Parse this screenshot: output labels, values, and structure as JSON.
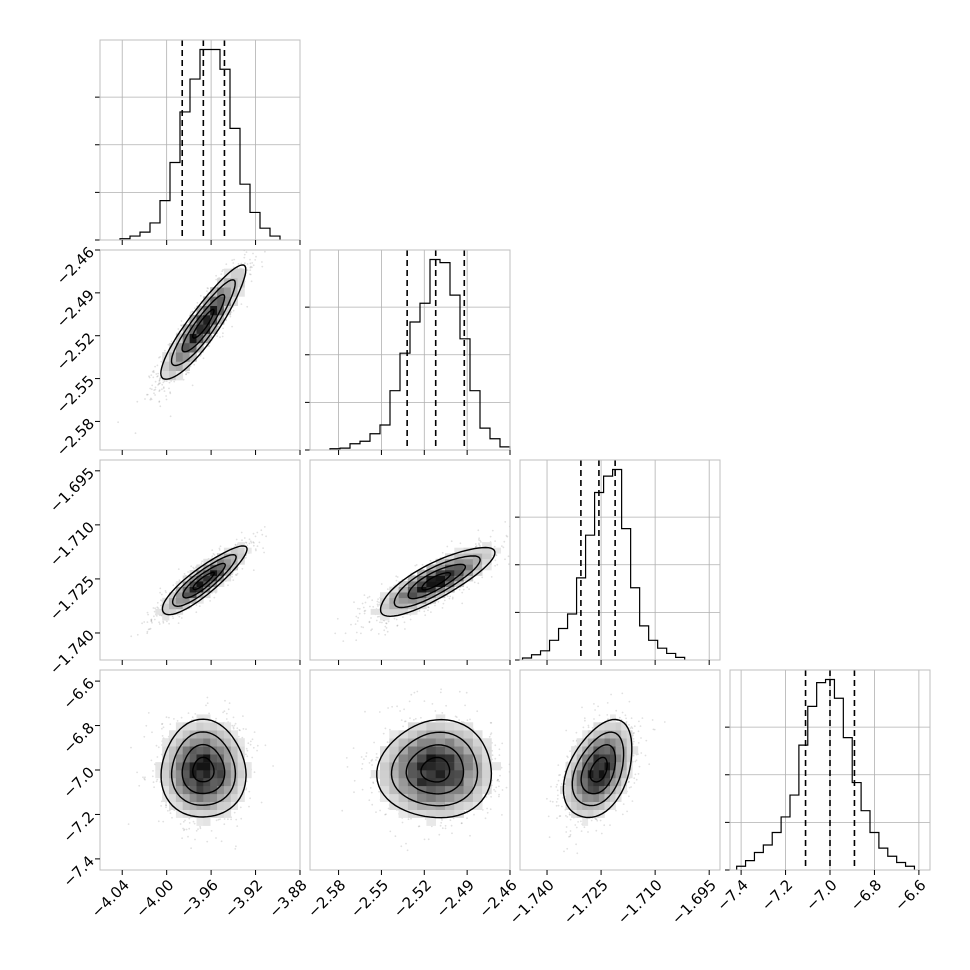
{
  "chart_data": {
    "type": "corner",
    "grid": true,
    "parameters": [
      {
        "name": "",
        "range": [
          -4.06,
          -3.88
        ],
        "ticks": [
          -4.04,
          -4.0,
          -3.96,
          -3.92,
          -3.88
        ],
        "tick_labels": [
          "−4.04",
          "−4.00",
          "−3.96",
          "−3.92",
          "−3.88"
        ],
        "quantiles": [
          -3.986,
          -3.967,
          -3.948
        ]
      },
      {
        "name": "",
        "range": [
          -2.6,
          -2.46
        ],
        "ticks": [
          -2.58,
          -2.55,
          -2.52,
          -2.49,
          -2.46
        ],
        "tick_labels": [
          "−2.58",
          "−2.55",
          "−2.52",
          "−2.49",
          "−2.46"
        ],
        "quantiles": [
          -2.532,
          -2.512,
          -2.492
        ]
      },
      {
        "name": "",
        "range": [
          -1.7475,
          -1.692
        ],
        "ticks": [
          -1.74,
          -1.725,
          -1.71,
          -1.695
        ],
        "tick_labels": [
          "−1.740",
          "−1.725",
          "−1.710",
          "−1.695"
        ],
        "quantiles": [
          -1.7306,
          -1.7256,
          -1.7211
        ]
      },
      {
        "name": "",
        "range": [
          -7.45,
          -6.55
        ],
        "ticks": [
          -7.4,
          -7.2,
          -7.0,
          -6.8,
          -6.6
        ],
        "tick_labels": [
          "−7.4",
          "−7.2",
          "−7.0",
          "−6.8",
          "−6.6"
        ],
        "quantiles": [
          -7.11,
          -7.0,
          -6.89
        ]
      }
    ],
    "histograms": [
      {
        "bins": [
          -4.042,
          -4.033,
          -4.024,
          -4.015,
          -4.006,
          -3.997,
          -3.988,
          -3.979,
          -3.97,
          -3.961,
          -3.952,
          -3.943,
          -3.934,
          -3.925,
          -3.916,
          -3.907
        ],
        "counts": [
          2,
          6,
          12,
          26,
          60,
          118,
          195,
          245,
          290,
          290,
          260,
          170,
          85,
          42,
          18,
          6
        ]
      },
      {
        "bins": [
          -2.586,
          -2.579,
          -2.572,
          -2.565,
          -2.558,
          -2.551,
          -2.544,
          -2.537,
          -2.53,
          -2.523,
          -2.516,
          -2.509,
          -2.502,
          -2.495,
          -2.488,
          -2.481,
          -2.474,
          -2.467
        ],
        "counts": [
          2,
          3,
          10,
          14,
          26,
          40,
          95,
          155,
          205,
          235,
          305,
          300,
          248,
          178,
          95,
          35,
          18,
          5
        ]
      },
      {
        "bins": [
          -1.7468,
          -1.7443,
          -1.7418,
          -1.7393,
          -1.7368,
          -1.7343,
          -1.7318,
          -1.7293,
          -1.7268,
          -1.7243,
          -1.7218,
          -1.7193,
          -1.7168,
          -1.7143,
          -1.7118,
          -1.7093,
          -1.7068,
          -1.7043
        ],
        "counts": [
          3,
          8,
          14,
          30,
          48,
          70,
          125,
          190,
          255,
          280,
          290,
          200,
          110,
          52,
          30,
          18,
          10,
          4
        ]
      },
      {
        "bins": [
          -7.42,
          -7.38,
          -7.34,
          -7.3,
          -7.26,
          -7.22,
          -7.18,
          -7.14,
          -7.1,
          -7.06,
          -7.02,
          -6.98,
          -6.94,
          -6.9,
          -6.86,
          -6.82,
          -6.78,
          -6.74,
          -6.7,
          -6.66,
          -6.62
        ],
        "counts": [
          6,
          15,
          28,
          40,
          60,
          85,
          120,
          200,
          262,
          300,
          305,
          275,
          212,
          140,
          95,
          60,
          35,
          22,
          12,
          6
        ]
      }
    ],
    "pairs": [
      {
        "x": 0,
        "y": 1,
        "rho": 0.9
      },
      {
        "x": 0,
        "y": 2,
        "rho": 0.88
      },
      {
        "x": 1,
        "y": 2,
        "rho": 0.82
      },
      {
        "x": 0,
        "y": 3,
        "rho": 0.0
      },
      {
        "x": 1,
        "y": 3,
        "rho": 0.03
      },
      {
        "x": 2,
        "y": 3,
        "rho": 0.4
      }
    ],
    "contour_levels_sigma": [
      0.5,
      1.0,
      1.5,
      2.0
    ]
  }
}
